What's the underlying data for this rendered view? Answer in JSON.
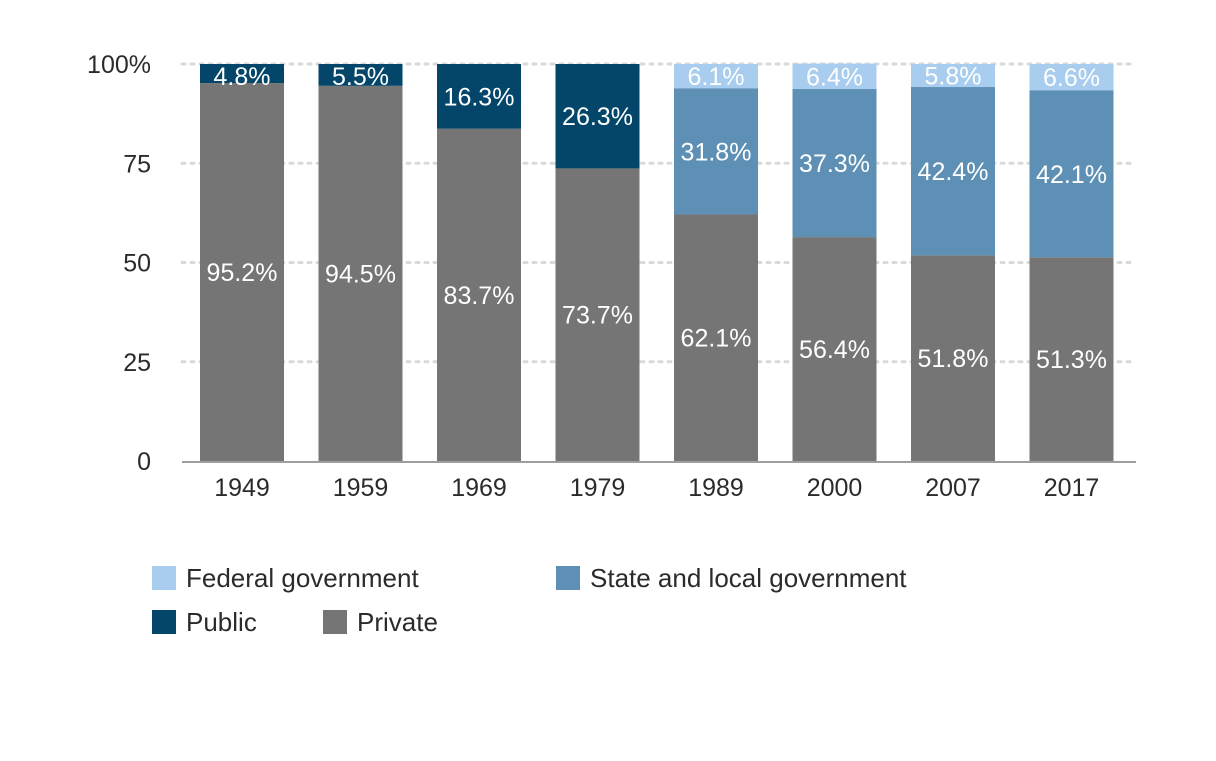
{
  "chart_data": {
    "type": "bar",
    "stacked": true,
    "categories": [
      "1949",
      "1959",
      "1969",
      "1979",
      "1989",
      "2000",
      "2007",
      "2017"
    ],
    "series": [
      {
        "name": "Private",
        "color": "#757575",
        "values": [
          95.2,
          94.5,
          83.7,
          73.7,
          62.1,
          56.4,
          51.8,
          51.3
        ],
        "labels": [
          "95.2%",
          "94.5%",
          "83.7%",
          "73.7%",
          "62.1%",
          "56.4%",
          "51.8%",
          "51.3%"
        ]
      },
      {
        "name": "Public",
        "color": "#03466a",
        "values": [
          4.8,
          5.5,
          16.3,
          26.3,
          null,
          null,
          null,
          null
        ],
        "labels": [
          "4.8%",
          "5.5%",
          "16.3%",
          "26.3%",
          null,
          null,
          null,
          null
        ]
      },
      {
        "name": "State and local government",
        "color": "#5e90b5",
        "values": [
          null,
          null,
          null,
          null,
          31.8,
          37.3,
          42.4,
          42.1
        ],
        "labels": [
          null,
          null,
          null,
          null,
          "31.8%",
          "37.3%",
          "42.4%",
          "42.1%"
        ]
      },
      {
        "name": "Federal government",
        "color": "#a8cdee",
        "values": [
          null,
          null,
          null,
          null,
          6.1,
          6.4,
          5.8,
          6.6
        ],
        "labels": [
          null,
          null,
          null,
          null,
          "6.1%",
          "6.4%",
          "5.8%",
          "6.6%"
        ]
      }
    ],
    "yticks": [
      {
        "value": 0,
        "label": "0"
      },
      {
        "value": 25,
        "label": "25"
      },
      {
        "value": 50,
        "label": "50"
      },
      {
        "value": 75,
        "label": "75"
      },
      {
        "value": 100,
        "label": "100%"
      }
    ],
    "ylim": [
      0,
      100
    ],
    "grid": "dotted horizontal",
    "legend_position": "bottom",
    "label_color": "#ffffff",
    "axis_text_color": "#2b2b2b",
    "grid_color": "#d9d9d9"
  },
  "legend": {
    "items": [
      {
        "label": "Federal government",
        "color": "#a8cdee"
      },
      {
        "label": "State and local government",
        "color": "#5e90b5"
      },
      {
        "label": "Public",
        "color": "#03466a"
      },
      {
        "label": "Private",
        "color": "#757575"
      }
    ]
  }
}
